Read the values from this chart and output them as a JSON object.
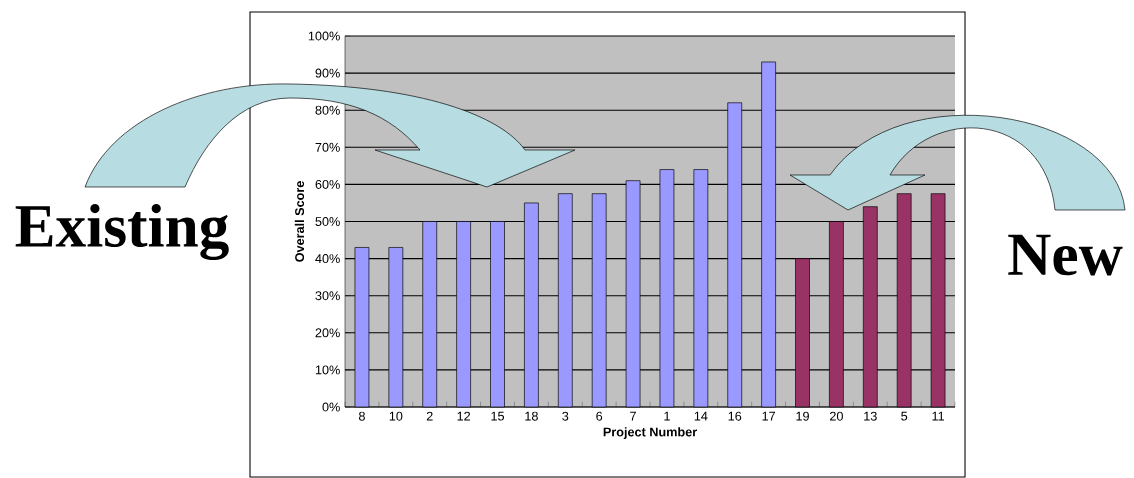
{
  "chart_data": {
    "type": "bar",
    "xlabel": "Project Number",
    "ylabel": "Overall Score",
    "categories": [
      "8",
      "10",
      "2",
      "12",
      "15",
      "18",
      "3",
      "6",
      "7",
      "1",
      "14",
      "16",
      "17",
      "19",
      "20",
      "13",
      "5",
      "11"
    ],
    "values": [
      43,
      43,
      50,
      50,
      50,
      55,
      57.5,
      57.5,
      61,
      64,
      64,
      82,
      93,
      40,
      50,
      54,
      57.5,
      57.5
    ],
    "colors": [
      "#9999ff",
      "#9999ff",
      "#9999ff",
      "#9999ff",
      "#9999ff",
      "#9999ff",
      "#9999ff",
      "#9999ff",
      "#9999ff",
      "#9999ff",
      "#9999ff",
      "#9999ff",
      "#9999ff",
      "#993366",
      "#993366",
      "#993366",
      "#993366",
      "#993366"
    ],
    "ylim": [
      0,
      100
    ],
    "yticks": [
      {
        "value": 0,
        "label": "0%"
      },
      {
        "value": 10,
        "label": "10%"
      },
      {
        "value": 20,
        "label": "20%"
      },
      {
        "value": 30,
        "label": "30%"
      },
      {
        "value": 40,
        "label": "40%"
      },
      {
        "value": 50,
        "label": "50%"
      },
      {
        "value": 60,
        "label": "60%"
      },
      {
        "value": 70,
        "label": "70%"
      },
      {
        "value": 80,
        "label": "80%"
      },
      {
        "value": 90,
        "label": "90%"
      },
      {
        "value": 100,
        "label": "100%"
      }
    ],
    "grid": "y",
    "annotations": [
      "Existing",
      "New"
    ]
  }
}
